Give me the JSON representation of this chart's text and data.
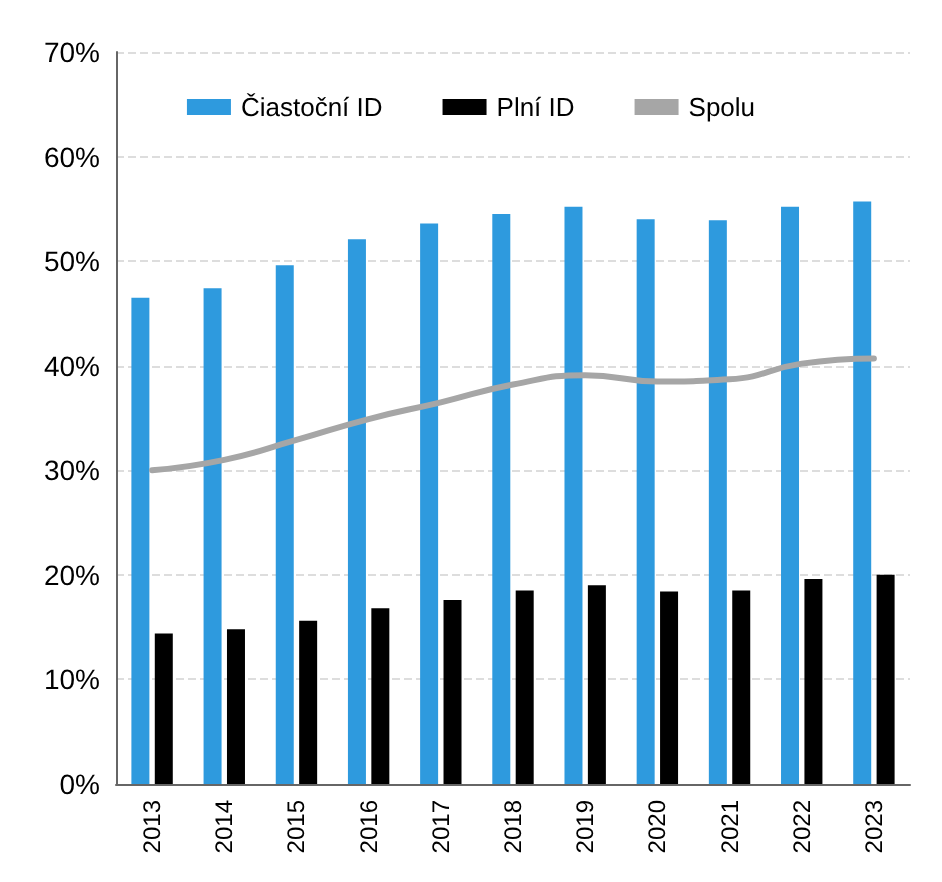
{
  "chart_data": {
    "type": "bar",
    "categories": [
      "2013",
      "2014",
      "2015",
      "2016",
      "2017",
      "2018",
      "2019",
      "2020",
      "2021",
      "2022",
      "2023"
    ],
    "series": [
      {
        "name": "Čiastoční ID",
        "color": "#2e9ade",
        "values": [
          46.5,
          47.4,
          49.6,
          52.1,
          53.6,
          54.5,
          55.2,
          54.0,
          53.9,
          55.2,
          55.7
        ]
      },
      {
        "name": "Plní ID",
        "color": "#000000",
        "values": [
          14.4,
          14.8,
          15.6,
          16.8,
          17.6,
          18.5,
          19.0,
          18.4,
          18.5,
          19.6,
          20.0
        ]
      },
      {
        "name": "Spolu",
        "type": "line",
        "color": "#a6a6a6",
        "values": [
          30.0,
          31.0,
          32.9,
          34.9,
          36.5,
          38.2,
          39.1,
          38.5,
          38.7,
          40.2,
          40.7
        ]
      }
    ],
    "ylim": [
      0,
      70
    ],
    "yticks": [
      {
        "value": 0,
        "label": "0%"
      },
      {
        "value": 10,
        "label": "10%"
      },
      {
        "value": 20,
        "label": "20%"
      },
      {
        "value": 30,
        "label": "30%"
      },
      {
        "value": 40,
        "label": "40%"
      },
      {
        "value": 50,
        "label": "50%"
      },
      {
        "value": 60,
        "label": "60%"
      },
      {
        "value": 70,
        "label": "70%"
      }
    ],
    "grid": "y",
    "legend": "top",
    "marker": "none"
  }
}
